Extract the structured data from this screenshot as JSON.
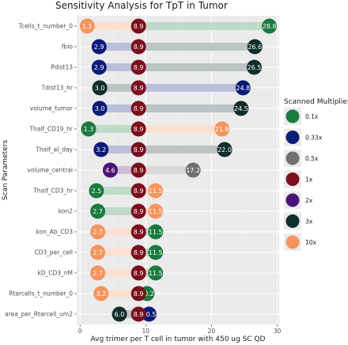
{
  "chart_data": {
    "type": "dumbbell",
    "title": "Sensitivity Analysis for TpT in Tumor",
    "xlabel": "Avg trimer per T cell in tumor with 450 ug SC QD",
    "ylabel": "Scan Parameters",
    "xlim": [
      -0.5,
      30.3
    ],
    "xticks": [
      0,
      10,
      20,
      30
    ],
    "grid": true,
    "baseline": 8.9,
    "baseline_label": "8.9",
    "legend": {
      "title": "Scanned Multiplier",
      "placement": "right",
      "items": [
        {
          "label": "0.1x",
          "color": "#1b7a3f"
        },
        {
          "label": "0.33x",
          "color": "#0d1b78"
        },
        {
          "label": "0.5x",
          "color": "#707070"
        },
        {
          "label": "1x",
          "color": "#7a0f1e"
        },
        {
          "label": "2x",
          "color": "#4b1476"
        },
        {
          "label": "3x",
          "color": "#0f2e2c"
        },
        {
          "label": "10x",
          "color": "#f5945e"
        }
      ]
    },
    "rows": [
      {
        "param": "Tcells_t_number_0",
        "low": {
          "value": 1.1,
          "label": "1.1",
          "mult": "10x"
        },
        "high": {
          "value": 28.8,
          "label": "28.8",
          "mult": "0.1x"
        }
      },
      {
        "param": "fbio",
        "low": {
          "value": 2.9,
          "label": "2.9",
          "mult": "0.33x"
        },
        "high": {
          "value": 26.6,
          "label": "26.6",
          "mult": "3x"
        }
      },
      {
        "param": "Pdist13",
        "low": {
          "value": 2.9,
          "label": "2.9",
          "mult": "0.33x"
        },
        "high": {
          "value": 26.5,
          "label": "26.5",
          "mult": "3x"
        }
      },
      {
        "param": "Tdist13_hr",
        "low": {
          "value": 3.0,
          "label": "3.0",
          "mult": "3x"
        },
        "high": {
          "value": 24.8,
          "label": "24.8",
          "mult": "0.33x"
        }
      },
      {
        "param": "volume_tumor",
        "low": {
          "value": 3.0,
          "label": "3.0",
          "mult": "0.33x"
        },
        "high": {
          "value": 24.5,
          "label": "24.5",
          "mult": "3x"
        }
      },
      {
        "param": "Thalf_CD19_hr",
        "low": {
          "value": 1.3,
          "label": "1.3",
          "mult": "0.1x"
        },
        "high": {
          "value": 21.6,
          "label": "21.6",
          "mult": "10x"
        }
      },
      {
        "param": "Thalf_el_day",
        "low": {
          "value": 3.2,
          "label": "3.2",
          "mult": "0.33x"
        },
        "high": {
          "value": 22.0,
          "label": "22.0",
          "mult": "3x"
        }
      },
      {
        "param": "volume_central",
        "low": {
          "value": 4.6,
          "label": "4.6",
          "mult": "2x"
        },
        "high": {
          "value": 17.2,
          "label": "17.2",
          "mult": "0.5x"
        }
      },
      {
        "param": "Thalf_CD3_hr",
        "low": {
          "value": 2.5,
          "label": "2.5",
          "mult": "0.1x"
        },
        "high": {
          "value": 11.5,
          "label": "11.5",
          "mult": "10x"
        }
      },
      {
        "param": "kon2",
        "low": {
          "value": 2.7,
          "label": "2.7",
          "mult": "0.1x"
        },
        "high": {
          "value": 11.5,
          "label": "11.5",
          "mult": "10x"
        }
      },
      {
        "param": "kon_Ab_CD3",
        "low": {
          "value": 2.7,
          "label": "2.7",
          "mult": "10x"
        },
        "high": {
          "value": 11.5,
          "label": "11.5",
          "mult": "0.1x"
        }
      },
      {
        "param": "CD3_per_cell",
        "low": {
          "value": 2.7,
          "label": "2.7",
          "mult": "10x"
        },
        "high": {
          "value": 11.5,
          "label": "11.5",
          "mult": "0.1x"
        }
      },
      {
        "param": "kD_CD3_nM",
        "low": {
          "value": 2.7,
          "label": "2.7",
          "mult": "10x"
        },
        "high": {
          "value": 11.5,
          "label": "11.5",
          "mult": "0.1x"
        }
      },
      {
        "param": "Rtarcells_t_number_0",
        "low": {
          "value": 3.2,
          "label": "3.2",
          "mult": "10x"
        },
        "high": {
          "value": 10.2,
          "label": "10.2",
          "mult": "0.1x"
        }
      },
      {
        "param": "area_per_Rtarcell_um2",
        "low": {
          "value": 6.0,
          "label": "6.0",
          "mult": "3x"
        },
        "high": {
          "value": 10.5,
          "label": "10.5",
          "mult": "0.33x"
        }
      }
    ]
  }
}
